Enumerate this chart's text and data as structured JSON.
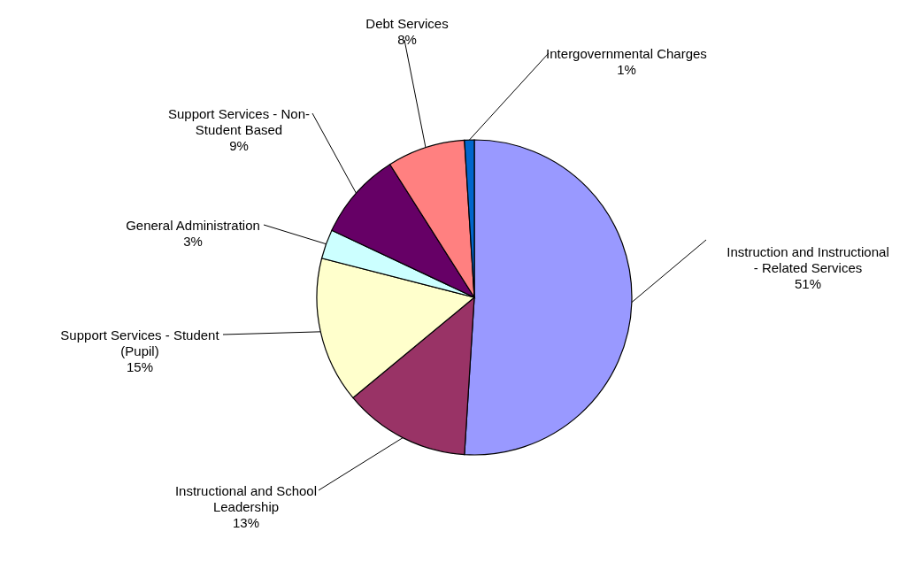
{
  "chart_data": {
    "type": "pie",
    "categories": [
      "Instruction and Instructional - Related Services",
      "Instructional and School Leadership",
      "Support Services - Student (Pupil)",
      "General Administration",
      "Support Services - Non-Student Based",
      "Debt Services",
      "Intergovernmental Charges"
    ],
    "values": [
      51,
      13,
      15,
      3,
      9,
      8,
      1
    ],
    "colors": [
      "#9999ff",
      "#993366",
      "#ffffcc",
      "#ccffff",
      "#660066",
      "#ff8080",
      "#0066cc"
    ],
    "value_labels": [
      "51%",
      "13%",
      "15%",
      "3%",
      "9%",
      "8%",
      "1%"
    ],
    "legend": false
  }
}
